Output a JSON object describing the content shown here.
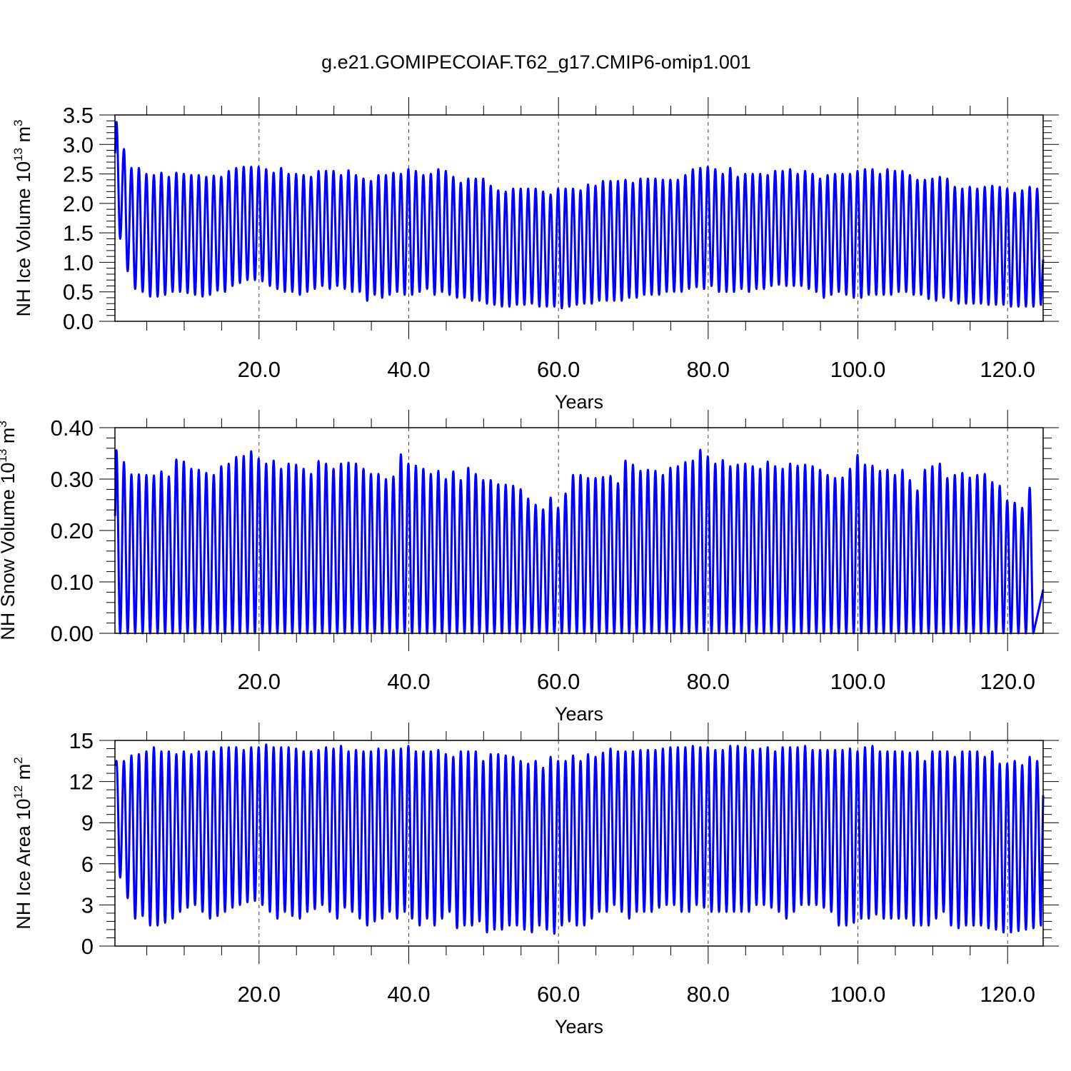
{
  "page_title": "g.e21.GOMIPECOIAF.T62_g17.CMIP6-omip1.001",
  "line_color": "#0000ff",
  "chart_data": [
    {
      "type": "line",
      "xlabel": "Years",
      "ylabel": {
        "prefix": "NH Ice Volume 10",
        "exp": "13",
        "unit": " m",
        "unit_exp": "3"
      },
      "xlim": [
        0.75,
        124.75
      ],
      "ylim": [
        0,
        3.5
      ],
      "xticks": [
        20,
        40,
        60,
        80,
        100,
        120
      ],
      "xtick_labels": [
        "20.0",
        "40.0",
        "60.0",
        "80.0",
        "100.0",
        "120.0"
      ],
      "yticks": [
        0,
        0.5,
        1.0,
        1.5,
        2.0,
        2.5,
        3.0,
        3.5
      ],
      "ytick_labels": [
        "0.0",
        "0.5",
        "1.0",
        "1.5",
        "2.0",
        "2.5",
        "3.0",
        "3.5"
      ],
      "grid": "vertical dashed at major x ticks",
      "series": [
        {
          "start_year": 1,
          "annual_max": [
            3.38,
            2.92,
            2.6,
            2.6,
            2.5,
            2.48,
            2.52,
            2.45,
            2.52,
            2.5,
            2.48,
            2.48,
            2.45,
            2.47,
            2.45,
            2.55,
            2.6,
            2.62,
            2.62,
            2.62,
            2.58,
            2.52,
            2.6,
            2.5,
            2.5,
            2.48,
            2.45,
            2.55,
            2.55,
            2.55,
            2.48,
            2.56,
            2.48,
            2.42,
            2.38,
            2.48,
            2.48,
            2.52,
            2.5,
            2.58,
            2.55,
            2.48,
            2.5,
            2.58,
            2.55,
            2.45,
            2.35,
            2.42,
            2.42,
            2.42,
            2.3,
            2.22,
            2.2,
            2.25,
            2.25,
            2.25,
            2.25,
            2.2,
            2.15,
            2.25,
            2.25,
            2.25,
            2.22,
            2.32,
            2.3,
            2.38,
            2.38,
            2.38,
            2.4,
            2.35,
            2.42,
            2.42,
            2.42,
            2.4,
            2.4,
            2.4,
            2.48,
            2.58,
            2.6,
            2.62,
            2.58,
            2.5,
            2.6,
            2.45,
            2.5,
            2.5,
            2.5,
            2.48,
            2.55,
            2.55,
            2.58,
            2.5,
            2.55,
            2.5,
            2.42,
            2.48,
            2.5,
            2.5,
            2.5,
            2.55,
            2.58,
            2.58,
            2.5,
            2.58,
            2.55,
            2.55,
            2.48,
            2.4,
            2.4,
            2.42,
            2.45,
            2.42,
            2.28,
            2.25,
            2.28,
            2.25,
            2.28,
            2.3,
            2.28,
            2.25,
            2.18,
            2.22,
            2.28,
            2.25
          ],
          "annual_min": [
            1.4,
            0.85,
            0.55,
            0.5,
            0.42,
            0.42,
            0.45,
            0.5,
            0.5,
            0.48,
            0.45,
            0.42,
            0.45,
            0.52,
            0.5,
            0.6,
            0.65,
            0.7,
            0.7,
            0.68,
            0.6,
            0.55,
            0.5,
            0.5,
            0.45,
            0.5,
            0.55,
            0.6,
            0.55,
            0.6,
            0.55,
            0.5,
            0.5,
            0.35,
            0.45,
            0.4,
            0.45,
            0.5,
            0.45,
            0.45,
            0.5,
            0.55,
            0.45,
            0.5,
            0.45,
            0.4,
            0.4,
            0.35,
            0.35,
            0.3,
            0.28,
            0.25,
            0.25,
            0.28,
            0.28,
            0.3,
            0.25,
            0.25,
            0.25,
            0.22,
            0.25,
            0.28,
            0.3,
            0.3,
            0.35,
            0.35,
            0.35,
            0.35,
            0.4,
            0.4,
            0.45,
            0.45,
            0.45,
            0.5,
            0.5,
            0.5,
            0.55,
            0.58,
            0.55,
            0.6,
            0.5,
            0.5,
            0.5,
            0.55,
            0.5,
            0.55,
            0.55,
            0.6,
            0.62,
            0.6,
            0.6,
            0.6,
            0.55,
            0.5,
            0.4,
            0.45,
            0.5,
            0.45,
            0.4,
            0.4,
            0.45,
            0.45,
            0.45,
            0.45,
            0.5,
            0.5,
            0.45,
            0.45,
            0.38,
            0.35,
            0.4,
            0.35,
            0.3,
            0.3,
            0.3,
            0.3,
            0.28,
            0.28,
            0.28,
            0.25,
            0.25,
            0.25,
            0.25,
            0.28
          ],
          "first_value": 2.85,
          "last_value": 1.05
        }
      ]
    },
    {
      "type": "line",
      "xlabel": "Years",
      "ylabel": {
        "prefix": "NH Snow Volume 10",
        "exp": "13",
        "unit": " m",
        "unit_exp": "3"
      },
      "xlim": [
        0.75,
        124.75
      ],
      "ylim": [
        0,
        0.4
      ],
      "xticks": [
        20,
        40,
        60,
        80,
        100,
        120
      ],
      "xtick_labels": [
        "20.0",
        "40.0",
        "60.0",
        "80.0",
        "100.0",
        "120.0"
      ],
      "yticks": [
        0,
        0.1,
        0.2,
        0.3,
        0.4
      ],
      "ytick_labels": [
        "0.00",
        "0.10",
        "0.20",
        "0.30",
        "0.40"
      ],
      "grid": "vertical dashed at major x ticks",
      "series": [
        {
          "start_year": 1,
          "annual_max": [
            0.356,
            0.333,
            0.309,
            0.309,
            0.308,
            0.307,
            0.315,
            0.305,
            0.338,
            0.334,
            0.32,
            0.318,
            0.312,
            0.308,
            0.325,
            0.33,
            0.343,
            0.345,
            0.354,
            0.34,
            0.33,
            0.336,
            0.32,
            0.33,
            0.328,
            0.32,
            0.31,
            0.335,
            0.33,
            0.32,
            0.33,
            0.332,
            0.33,
            0.32,
            0.31,
            0.31,
            0.3,
            0.305,
            0.348,
            0.33,
            0.326,
            0.32,
            0.31,
            0.316,
            0.3,
            0.315,
            0.298,
            0.322,
            0.31,
            0.298,
            0.298,
            0.29,
            0.289,
            0.287,
            0.28,
            0.262,
            0.25,
            0.241,
            0.264,
            0.244,
            0.272,
            0.308,
            0.308,
            0.302,
            0.302,
            0.304,
            0.306,
            0.292,
            0.336,
            0.328,
            0.316,
            0.318,
            0.316,
            0.308,
            0.322,
            0.325,
            0.333,
            0.336,
            0.357,
            0.344,
            0.33,
            0.337,
            0.325,
            0.328,
            0.33,
            0.325,
            0.32,
            0.334,
            0.325,
            0.32,
            0.33,
            0.326,
            0.328,
            0.325,
            0.318,
            0.308,
            0.302,
            0.303,
            0.32,
            0.347,
            0.328,
            0.326,
            0.316,
            0.318,
            0.308,
            0.318,
            0.298,
            0.278,
            0.318,
            0.325,
            0.33,
            0.302,
            0.308,
            0.312,
            0.303,
            0.308,
            0.31,
            0.294,
            0.287,
            0.258,
            0.254,
            0.244,
            0.283
          ],
          "annual_min": 0.0,
          "first_value": 0.228,
          "last_value": 0.085
        }
      ]
    },
    {
      "type": "line",
      "xlabel": "Years",
      "ylabel": {
        "prefix": "NH Ice Area 10",
        "exp": "12",
        "unit": " m",
        "unit_exp": "2"
      },
      "xlim": [
        0.75,
        124.75
      ],
      "ylim": [
        0,
        15
      ],
      "xticks": [
        20,
        40,
        60,
        80,
        100,
        120
      ],
      "xtick_labels": [
        "20.0",
        "40.0",
        "60.0",
        "80.0",
        "100.0",
        "120.0"
      ],
      "yticks": [
        0,
        3,
        6,
        9,
        12,
        15
      ],
      "ytick_labels": [
        "0",
        "3",
        "6",
        "9",
        "12",
        "15"
      ],
      "grid": "vertical dashed at major x ticks",
      "series": [
        {
          "start_year": 1,
          "annual_max": [
            13.5,
            13.5,
            13.9,
            14.0,
            14.2,
            14.5,
            14.2,
            14.2,
            14.0,
            14.2,
            14.0,
            14.2,
            14.2,
            14.2,
            14.5,
            14.5,
            14.5,
            14.3,
            14.5,
            14.5,
            14.7,
            14.5,
            14.5,
            14.5,
            14.4,
            14.2,
            14.2,
            14.3,
            14.5,
            14.4,
            14.6,
            14.2,
            14.3,
            14.2,
            14.2,
            14.4,
            14.3,
            14.3,
            14.4,
            14.6,
            14.2,
            14.2,
            14.2,
            14.3,
            14.0,
            13.8,
            14.2,
            14.2,
            14.2,
            13.5,
            14.0,
            14.0,
            13.9,
            13.8,
            13.5,
            13.3,
            13.5,
            13.0,
            13.8,
            13.5,
            13.5,
            13.9,
            13.5,
            14.0,
            13.8,
            14.1,
            14.4,
            14.2,
            14.2,
            14.2,
            14.3,
            14.3,
            14.3,
            14.4,
            14.5,
            14.5,
            14.5,
            14.6,
            14.5,
            14.5,
            14.3,
            14.3,
            14.6,
            14.6,
            14.5,
            14.3,
            14.4,
            14.5,
            14.2,
            14.5,
            14.5,
            14.5,
            14.6,
            14.3,
            14.3,
            14.3,
            14.3,
            14.3,
            14.4,
            14.2,
            14.5,
            14.6,
            14.2,
            14.2,
            14.2,
            14.2,
            14.1,
            14.2,
            13.5,
            14.2,
            14.2,
            14.2,
            13.8,
            14.2,
            14.2,
            14.2,
            13.8,
            14.2,
            13.3,
            13.3,
            13.5,
            13.2,
            13.8,
            13.5
          ],
          "annual_min": [
            5.0,
            3.5,
            2.0,
            2.2,
            1.5,
            1.5,
            1.7,
            2.0,
            2.5,
            2.8,
            3.0,
            2.5,
            2.0,
            2.2,
            2.5,
            2.8,
            3.0,
            3.2,
            3.3,
            3.0,
            2.5,
            2.0,
            2.5,
            2.2,
            2.0,
            2.5,
            2.7,
            3.0,
            2.5,
            2.0,
            2.8,
            2.5,
            2.0,
            1.5,
            1.8,
            2.0,
            2.5,
            2.0,
            2.5,
            2.0,
            1.5,
            2.0,
            1.5,
            2.0,
            2.5,
            1.3,
            1.5,
            1.5,
            1.8,
            1.0,
            1.2,
            1.2,
            1.5,
            1.5,
            1.2,
            1.0,
            1.5,
            1.2,
            0.9,
            1.5,
            1.8,
            1.5,
            1.5,
            2.0,
            2.5,
            2.5,
            3.0,
            2.5,
            2.0,
            2.5,
            2.5,
            2.5,
            2.8,
            3.0,
            3.0,
            2.5,
            2.5,
            3.0,
            2.8,
            2.5,
            2.5,
            2.5,
            2.5,
            2.5,
            2.5,
            3.0,
            3.0,
            2.8,
            2.5,
            2.0,
            2.5,
            3.0,
            3.0,
            3.0,
            2.8,
            2.5,
            1.5,
            1.5,
            1.7,
            2.0,
            2.0,
            2.3,
            2.0,
            2.0,
            2.0,
            2.0,
            1.5,
            1.5,
            1.5,
            2.0,
            2.5,
            1.5,
            1.3,
            1.5,
            1.5,
            1.5,
            1.3,
            1.2,
            1.0,
            1.0,
            1.1,
            1.2,
            1.3,
            1.5
          ],
          "first_value": 13.2,
          "last_value": 11.0
        }
      ]
    }
  ]
}
